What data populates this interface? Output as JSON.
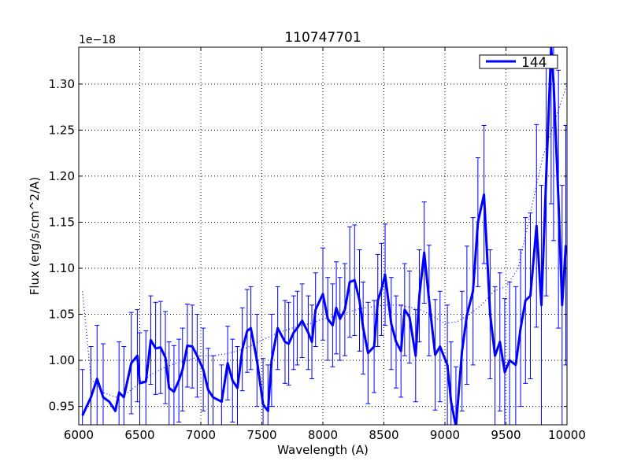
{
  "chart_data": {
    "type": "line",
    "title": "110747701",
    "xlabel": "Wavelength (A)",
    "ylabel": "Flux (erg/s/cm^2/A)",
    "offset_text": "1e−18",
    "xlim": [
      6000,
      10000
    ],
    "ylim": [
      0.93,
      1.34
    ],
    "xticks": [
      6000,
      6500,
      7000,
      7500,
      8000,
      8500,
      9000,
      9500,
      10000
    ],
    "yticks": [
      0.95,
      1.0,
      1.05,
      1.1,
      1.15,
      1.2,
      1.25,
      1.3
    ],
    "xtick_labels": [
      "6000",
      "6500",
      "7000",
      "7500",
      "8000",
      "8500",
      "9000",
      "9500",
      "10000"
    ],
    "ytick_labels": [
      "0.95",
      "1.00",
      "1.05",
      "1.10",
      "1.15",
      "1.20",
      "1.25",
      "1.30"
    ],
    "grid": true,
    "legend_position": "top-right",
    "series": [
      {
        "name": "144",
        "color": "#0000ff",
        "style": "solid",
        "x": [
          6030,
          6100,
          6150,
          6200,
          6250,
          6300,
          6330,
          6370,
          6430,
          6480,
          6500,
          6550,
          6590,
          6630,
          6670,
          6710,
          6740,
          6780,
          6820,
          6850,
          6890,
          6930,
          6970,
          7020,
          7060,
          7100,
          7170,
          7220,
          7260,
          7300,
          7340,
          7380,
          7410,
          7460,
          7510,
          7550,
          7580,
          7630,
          7690,
          7720,
          7760,
          7790,
          7830,
          7880,
          7910,
          7940,
          8000,
          8040,
          8080,
          8110,
          8140,
          8180,
          8220,
          8260,
          8300,
          8330,
          8370,
          8420,
          8450,
          8480,
          8510,
          8560,
          8600,
          8640,
          8670,
          8710,
          8760,
          8790,
          8830,
          8870,
          8920,
          8960,
          9020,
          9050,
          9090,
          9140,
          9180,
          9230,
          9270,
          9320,
          9370,
          9410,
          9450,
          9490,
          9530,
          9580,
          9620,
          9660,
          9700,
          9750,
          9790,
          9830,
          9870,
          9890,
          9930,
          9960,
          9990
        ],
        "y": [
          0.94,
          0.96,
          0.98,
          0.96,
          0.955,
          0.945,
          0.965,
          0.96,
          0.997,
          1.005,
          0.975,
          0.977,
          1.022,
          1.013,
          1.014,
          1.003,
          0.97,
          0.966,
          0.978,
          0.99,
          1.016,
          1.015,
          1.005,
          0.99,
          0.968,
          0.96,
          0.955,
          0.997,
          0.978,
          0.97,
          1.012,
          1.032,
          1.035,
          1.0,
          0.952,
          0.945,
          1.0,
          1.035,
          1.02,
          1.018,
          1.03,
          1.035,
          1.043,
          1.03,
          1.02,
          1.055,
          1.072,
          1.045,
          1.038,
          1.057,
          1.045,
          1.055,
          1.085,
          1.087,
          1.065,
          1.035,
          1.008,
          1.015,
          1.065,
          1.077,
          1.093,
          1.04,
          1.02,
          1.01,
          1.055,
          1.047,
          1.005,
          1.07,
          1.117,
          1.065,
          1.006,
          1.015,
          0.995,
          0.955,
          0.928,
          1.01,
          1.049,
          1.075,
          1.15,
          1.18,
          1.05,
          1.005,
          1.02,
          0.987,
          1.0,
          0.995,
          1.035,
          1.065,
          1.07,
          1.146,
          1.06,
          1.2,
          1.34,
          1.3,
          1.175,
          1.06,
          1.125
        ]
      },
      {
        "name": "",
        "color": "#0000ff",
        "style": "dotted",
        "x": [
          6030,
          6100,
          6200,
          6300,
          6400,
          6500,
          6600,
          6700,
          6800,
          6900,
          7000,
          7100,
          7200,
          7300,
          7400,
          7500,
          7600,
          7700,
          7800,
          7900,
          8000,
          8100,
          8200,
          8300,
          8400,
          8500,
          8600,
          8700,
          8800,
          8900,
          9000,
          9100,
          9200,
          9300,
          9400,
          9500,
          9600,
          9700,
          9800,
          9900,
          10000
        ],
        "y": [
          1.075,
          0.98,
          0.965,
          0.96,
          0.965,
          0.975,
          0.985,
          0.992,
          0.997,
          1.0,
          1.005,
          1.005,
          1.007,
          1.01,
          1.015,
          1.022,
          1.028,
          1.033,
          1.037,
          1.04,
          1.045,
          1.048,
          1.052,
          1.056,
          1.058,
          1.06,
          1.06,
          1.058,
          1.055,
          1.048,
          1.04,
          1.042,
          1.05,
          1.06,
          1.075,
          1.08,
          1.1,
          1.16,
          1.22,
          1.26,
          1.3
        ]
      }
    ],
    "error_bars": {
      "x": [
        6030,
        6100,
        6150,
        6200,
        6330,
        6370,
        6430,
        6480,
        6500,
        6550,
        6590,
        6630,
        6670,
        6710,
        6740,
        6780,
        6820,
        6850,
        6890,
        6930,
        6970,
        7020,
        7060,
        7100,
        7170,
        7220,
        7260,
        7300,
        7340,
        7380,
        7410,
        7460,
        7510,
        7550,
        7580,
        7630,
        7690,
        7720,
        7760,
        7790,
        7830,
        7880,
        7910,
        7940,
        8000,
        8040,
        8080,
        8110,
        8140,
        8180,
        8220,
        8260,
        8300,
        8330,
        8370,
        8420,
        8450,
        8480,
        8510,
        8560,
        8600,
        8640,
        8670,
        8710,
        8760,
        8790,
        8830,
        8870,
        8920,
        8960,
        9020,
        9050,
        9090,
        9140,
        9180,
        9230,
        9270,
        9320,
        9370,
        9410,
        9450,
        9490,
        9530,
        9580,
        9620,
        9660,
        9700,
        9750,
        9790,
        9830,
        9870,
        9890,
        9930,
        9960,
        9990
      ],
      "y": [
        0.94,
        0.96,
        0.98,
        0.96,
        0.965,
        0.96,
        0.997,
        1.005,
        0.975,
        0.977,
        1.022,
        1.013,
        1.014,
        1.003,
        0.97,
        0.966,
        0.978,
        0.99,
        1.016,
        1.015,
        1.005,
        0.99,
        0.968,
        0.96,
        0.955,
        0.997,
        0.978,
        0.97,
        1.012,
        1.032,
        1.035,
        1.0,
        0.952,
        0.945,
        1.0,
        1.035,
        1.02,
        1.018,
        1.03,
        1.035,
        1.043,
        1.03,
        1.02,
        1.055,
        1.072,
        1.045,
        1.038,
        1.057,
        1.045,
        1.055,
        1.085,
        1.087,
        1.065,
        1.035,
        1.008,
        1.015,
        1.065,
        1.077,
        1.093,
        1.04,
        1.02,
        1.01,
        1.055,
        1.047,
        1.005,
        1.07,
        1.117,
        1.065,
        1.006,
        1.015,
        0.995,
        0.955,
        0.928,
        1.01,
        1.049,
        1.075,
        1.15,
        1.18,
        1.05,
        1.005,
        1.02,
        0.987,
        1.0,
        0.995,
        1.035,
        1.065,
        1.07,
        1.146,
        1.06,
        1.2,
        1.34,
        1.3,
        1.175,
        1.06,
        1.125
      ],
      "err": [
        0.05,
        0.055,
        0.058,
        0.058,
        0.055,
        0.055,
        0.055,
        0.05,
        0.055,
        0.055,
        0.048,
        0.05,
        0.05,
        0.05,
        0.05,
        0.05,
        0.045,
        0.045,
        0.045,
        0.045,
        0.045,
        0.045,
        0.045,
        0.045,
        0.04,
        0.04,
        0.045,
        0.045,
        0.045,
        0.045,
        0.045,
        0.05,
        0.05,
        0.05,
        0.05,
        0.045,
        0.045,
        0.045,
        0.04,
        0.04,
        0.04,
        0.04,
        0.04,
        0.04,
        0.05,
        0.045,
        0.045,
        0.05,
        0.045,
        0.05,
        0.06,
        0.06,
        0.055,
        0.05,
        0.055,
        0.05,
        0.05,
        0.05,
        0.055,
        0.05,
        0.05,
        0.05,
        0.05,
        0.05,
        0.05,
        0.05,
        0.055,
        0.06,
        0.06,
        0.06,
        0.065,
        0.065,
        0.065,
        0.065,
        0.075,
        0.08,
        0.07,
        0.075,
        0.07,
        0.075,
        0.075,
        0.08,
        0.085,
        0.085,
        0.085,
        0.09,
        0.09,
        0.11,
        0.13,
        0.13,
        0.17,
        0.17,
        0.14,
        0.13,
        0.13
      ]
    }
  }
}
